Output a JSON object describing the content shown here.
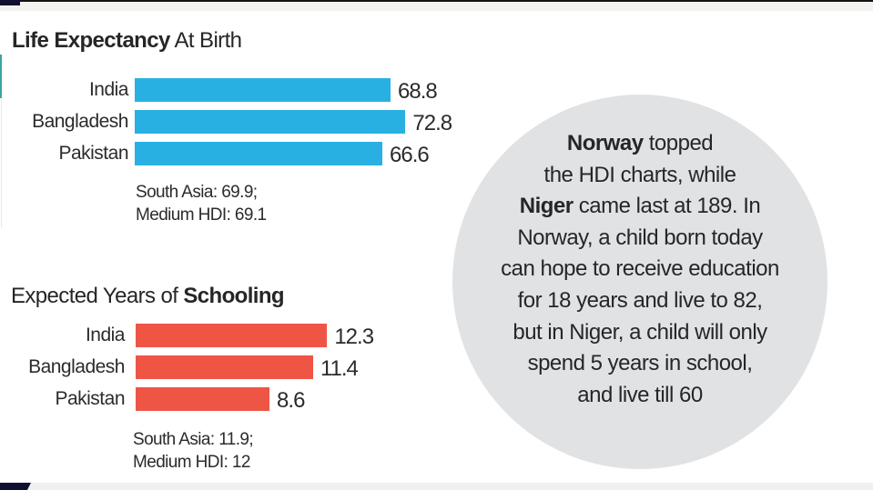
{
  "colors": {
    "life_expectancy_bar": "#29b0e3",
    "schooling_bar": "#ef5545",
    "callout_background": "#e1e2e4",
    "text": "#2b2b2b"
  },
  "life_expectancy": {
    "title_bold": "Life Expectancy",
    "title_rest": " At Birth",
    "note_line1": "South Asia: 69.9;",
    "note_line2": "Medium HDI: 69.1"
  },
  "schooling": {
    "title_rest": "Expected Years of ",
    "title_bold": "Schooling",
    "note_line1": "South Asia: 11.9;",
    "note_line2": "Medium HDI: 12"
  },
  "callout": {
    "lines": [
      {
        "bold": "Norway",
        "text": " topped"
      },
      {
        "bold": "",
        "text": "the HDI charts, while"
      },
      {
        "bold": "Niger",
        "text": " came last at 189. In"
      },
      {
        "bold": "",
        "text": "Norway, a child born today"
      },
      {
        "bold": "",
        "text": "can hope to receive education"
      },
      {
        "bold": "",
        "text": "for 18 years and live to 82,"
      },
      {
        "bold": "",
        "text": "but in Niger, a child will only"
      },
      {
        "bold": "",
        "text": "spend 5 years in school,"
      },
      {
        "bold": "",
        "text": "and live till 60"
      }
    ]
  },
  "chart_data": [
    {
      "type": "bar",
      "orientation": "horizontal",
      "title": "Life Expectancy At Birth",
      "categories": [
        "India",
        "Bangladesh",
        "Pakistan"
      ],
      "values": [
        68.8,
        72.8,
        66.6
      ],
      "value_labels": [
        "68.8",
        "72.8",
        "66.6"
      ],
      "annotations": [
        "South Asia: 69.9;",
        "Medium HDI: 69.1"
      ],
      "xlabel": "",
      "ylabel": "",
      "grid": false,
      "legend": "none"
    },
    {
      "type": "bar",
      "orientation": "horizontal",
      "title": "Expected Years of Schooling",
      "categories": [
        "India",
        "Bangladesh",
        "Pakistan"
      ],
      "values": [
        12.3,
        11.4,
        8.6
      ],
      "value_labels": [
        "12.3",
        "11.4",
        "8.6"
      ],
      "annotations": [
        "South Asia: 11.9;",
        "Medium HDI: 12"
      ],
      "xlabel": "",
      "ylabel": "",
      "grid": false,
      "legend": "none"
    }
  ]
}
